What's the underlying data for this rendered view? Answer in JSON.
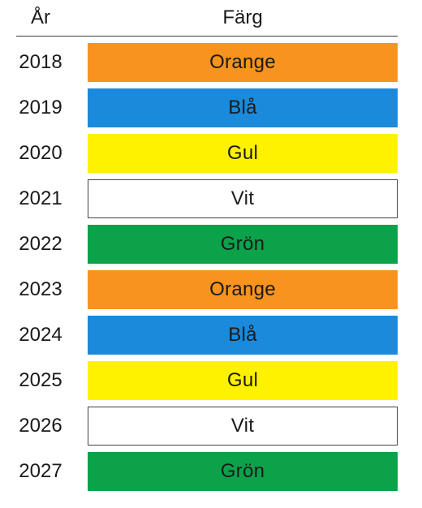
{
  "header": {
    "year_label": "År",
    "color_label": "Färg"
  },
  "colors": {
    "orange": "#F7931E",
    "blue": "#1C8ADB",
    "yellow": "#FFF200",
    "white": "#FFFFFF",
    "green": "#0BA24A"
  },
  "rows": [
    {
      "year": "2018",
      "color_name": "Orange",
      "swatch": "orange"
    },
    {
      "year": "2019",
      "color_name": "Blå",
      "swatch": "blue"
    },
    {
      "year": "2020",
      "color_name": "Gul",
      "swatch": "yellow"
    },
    {
      "year": "2021",
      "color_name": "Vit",
      "swatch": "white"
    },
    {
      "year": "2022",
      "color_name": "Grön",
      "swatch": "green"
    },
    {
      "year": "2023",
      "color_name": "Orange",
      "swatch": "orange"
    },
    {
      "year": "2024",
      "color_name": "Blå",
      "swatch": "blue"
    },
    {
      "year": "2025",
      "color_name": "Gul",
      "swatch": "yellow"
    },
    {
      "year": "2026",
      "color_name": "Vit",
      "swatch": "white"
    },
    {
      "year": "2027",
      "color_name": "Grön",
      "swatch": "green"
    }
  ]
}
